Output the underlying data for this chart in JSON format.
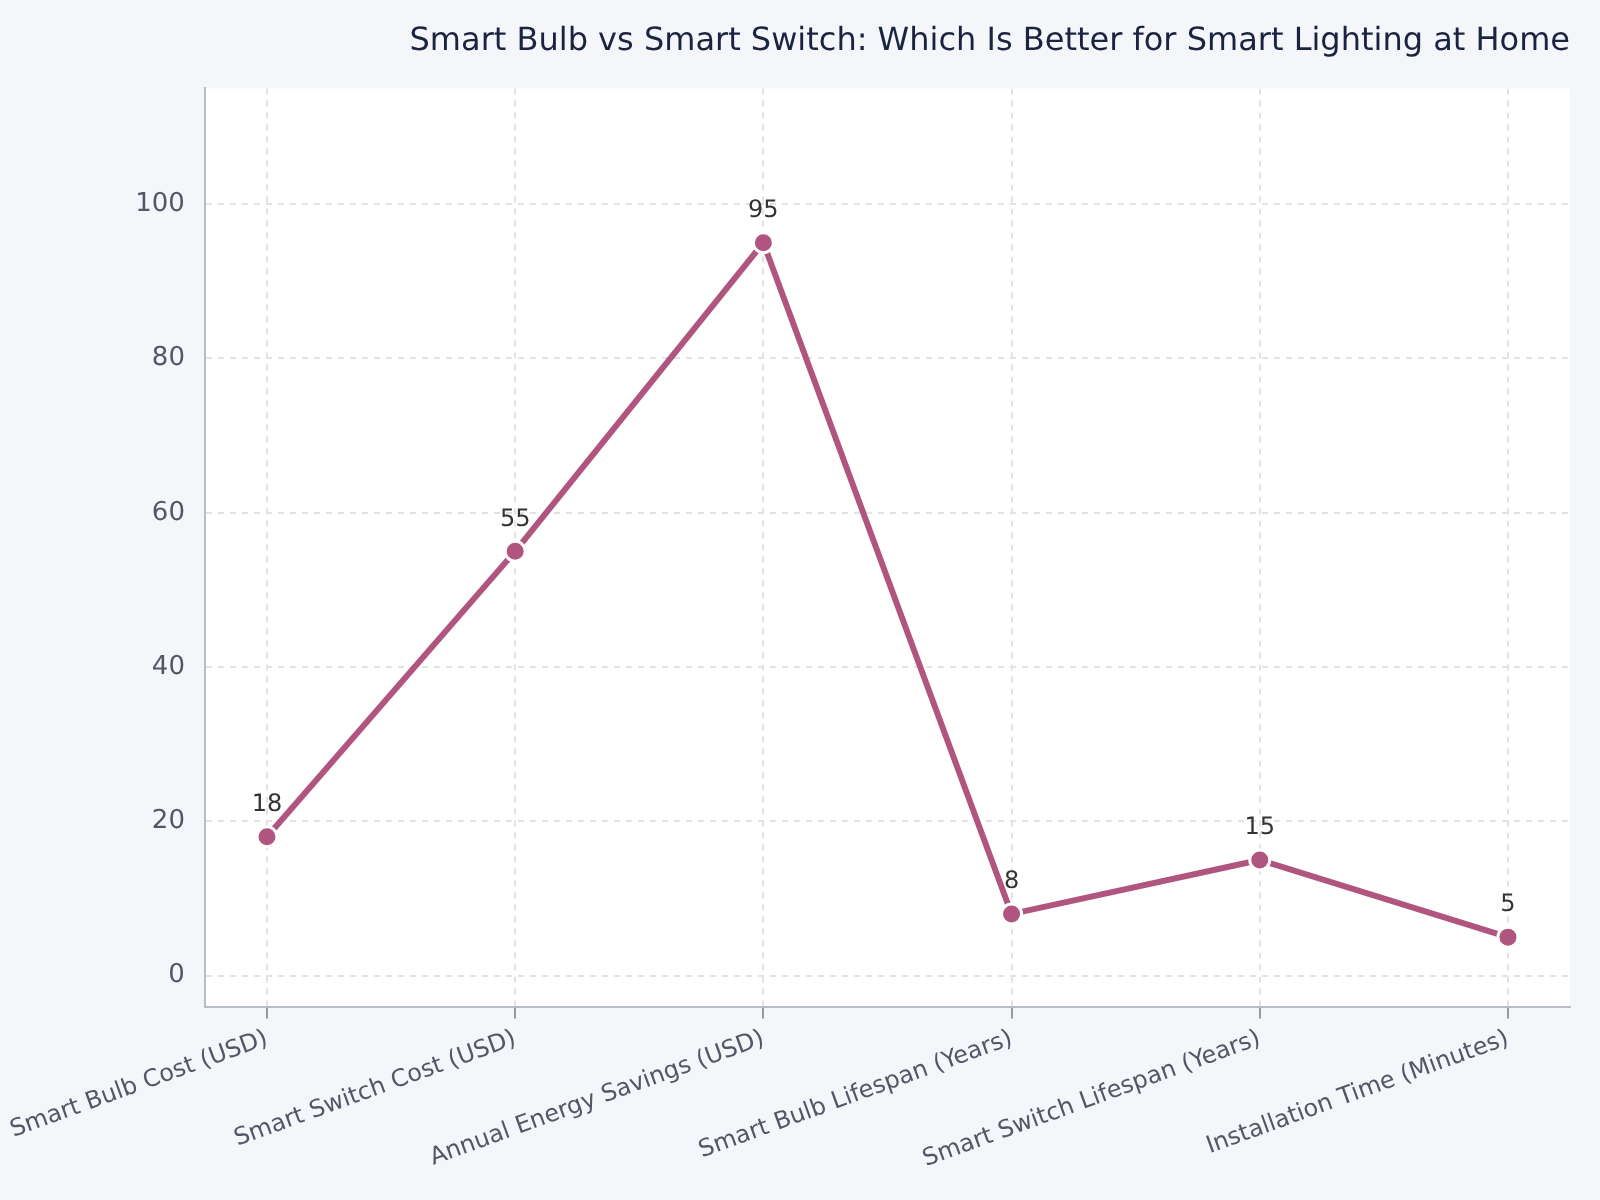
{
  "chart_data": {
    "type": "line",
    "title": "Smart Bulb vs Smart Switch: Which Is Better for Smart Lighting at Home",
    "categories": [
      "Smart Bulb Cost (USD)",
      "Smart Switch Cost (USD)",
      "Annual Energy Savings (USD)",
      "Smart Bulb Lifespan (Years)",
      "Smart Switch Lifespan (Years)",
      "Installation Time (Minutes)"
    ],
    "values": [
      18,
      55,
      95,
      8,
      15,
      5
    ],
    "color": "#b05580",
    "ylim": [
      -4,
      115
    ],
    "yticks": [
      0,
      20,
      40,
      60,
      80,
      100
    ],
    "grid": true,
    "marker": "circle",
    "line_style": "solid",
    "data_labels": true,
    "legend": false
  }
}
